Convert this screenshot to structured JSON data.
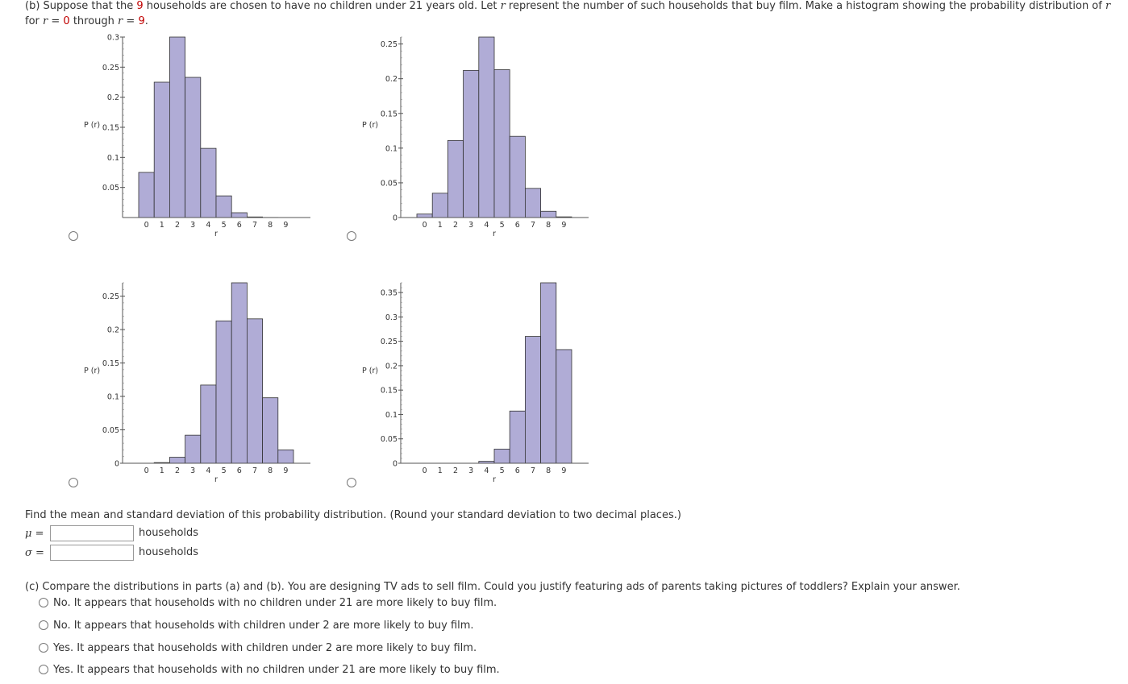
{
  "part_b": {
    "line1_pre": "(b) Suppose that the ",
    "n": "9",
    "line1_post": " households are chosen to have no children under 21 years old. Let ",
    "var": "r",
    "line1_end": " represent the number of such households that buy film. Make a histogram showing the probability distribution of ",
    "line2_pre": "for ",
    "r0": "0",
    "through": " through ",
    "r9": "9",
    "eq": " = ",
    "period": "."
  },
  "bar_color": "#b0acd6",
  "chart_data": [
    {
      "type": "bar",
      "option": "A",
      "categories": [
        "0",
        "1",
        "2",
        "3",
        "4",
        "5",
        "6",
        "7",
        "8",
        "9"
      ],
      "values": [
        0.075,
        0.225,
        0.3,
        0.233,
        0.115,
        0.036,
        0.008,
        0.001,
        0.0002,
        0.0
      ],
      "xlabel": "r",
      "ylabel": "P (r)",
      "ylim": [
        0,
        0.3
      ],
      "yticks": [
        [
          "0.05",
          0.05
        ],
        [
          "0.1",
          0.1
        ],
        [
          "0.15",
          0.15
        ],
        [
          "0.2",
          0.2
        ],
        [
          "0.25",
          0.25
        ],
        [
          "0.3",
          0.3
        ]
      ]
    },
    {
      "type": "bar",
      "option": "B",
      "categories": [
        "0",
        "1",
        "2",
        "3",
        "4",
        "5",
        "6",
        "7",
        "8",
        "9"
      ],
      "values": [
        0.005,
        0.035,
        0.111,
        0.212,
        0.26,
        0.213,
        0.117,
        0.042,
        0.009,
        0.001
      ],
      "xlabel": "r",
      "ylabel": "P (r)",
      "ylim": [
        0,
        0.26
      ],
      "yticks": [
        [
          "0",
          0
        ],
        [
          "0.05",
          0.05
        ],
        [
          "0.1",
          0.1
        ],
        [
          "0.15",
          0.15
        ],
        [
          "0.2",
          0.2
        ],
        [
          "0.25",
          0.25
        ]
      ]
    },
    {
      "type": "bar",
      "option": "C",
      "categories": [
        "0",
        "1",
        "2",
        "3",
        "4",
        "5",
        "6",
        "7",
        "8",
        "9"
      ],
      "values": [
        0.0,
        0.001,
        0.009,
        0.042,
        0.117,
        0.213,
        0.27,
        0.216,
        0.098,
        0.02
      ],
      "xlabel": "r",
      "ylabel": "P (r)",
      "ylim": [
        0,
        0.27
      ],
      "yticks": [
        [
          "0",
          0
        ],
        [
          "0.05",
          0.05
        ],
        [
          "0.1",
          0.1
        ],
        [
          "0.15",
          0.15
        ],
        [
          "0.2",
          0.2
        ],
        [
          "0.25",
          0.25
        ]
      ]
    },
    {
      "type": "bar",
      "option": "D",
      "categories": [
        "0",
        "1",
        "2",
        "3",
        "4",
        "5",
        "6",
        "7",
        "8",
        "9"
      ],
      "values": [
        0.0,
        0.0,
        0.0,
        0.0,
        0.004,
        0.029,
        0.107,
        0.26,
        0.37,
        0.233
      ],
      "xlabel": "r",
      "ylabel": "P (r)",
      "ylim": [
        0,
        0.37
      ],
      "yticks": [
        [
          "0",
          0
        ],
        [
          "0.05",
          0.05
        ],
        [
          "0.1",
          0.1
        ],
        [
          "0.15",
          0.15
        ],
        [
          "0.2",
          0.2
        ],
        [
          "0.25",
          0.25
        ],
        [
          "0.3",
          0.3
        ],
        [
          "0.35",
          0.35
        ]
      ]
    }
  ],
  "mean_sd": {
    "instruction": "Find the mean and standard deviation of this probability distribution. (Round your standard deviation to two decimal places.)",
    "mu_label": "μ =",
    "sigma_label": "σ =",
    "mu_value": "",
    "sigma_value": "",
    "unit": "households"
  },
  "part_c": {
    "question": "(c) Compare the distributions in parts (a) and (b). You are designing TV ads to sell film. Could you justify featuring ads of parents taking pictures of toddlers? Explain your answer.",
    "options": [
      "No. It appears that households with no children under 21 are more likely to buy film.",
      "No. It appears that households with children under 2 are more likely to buy film.",
      "Yes. It appears that households with children under 2 are more likely to buy film.",
      "Yes. It appears that households with no children under 21 are more likely to buy film."
    ]
  }
}
